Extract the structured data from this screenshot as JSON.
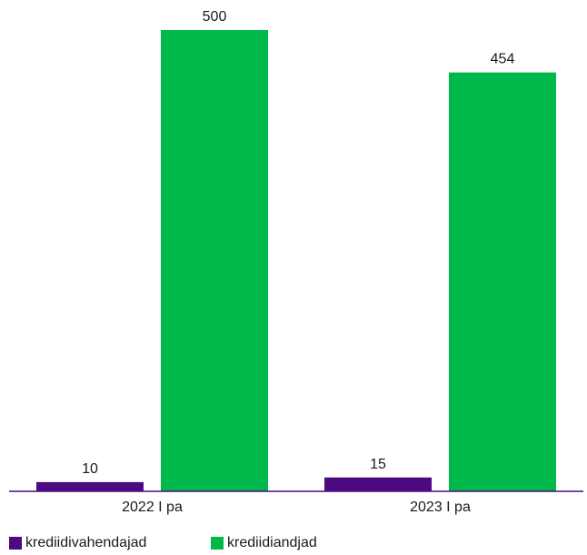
{
  "chart_data": {
    "type": "bar",
    "categories": [
      "2022 I pa",
      "2023 I pa"
    ],
    "series": [
      {
        "name": "krediidivahendajad",
        "values": [
          10,
          15
        ],
        "color": "#4b0a82"
      },
      {
        "name": "krediidiandjad",
        "values": [
          500,
          454
        ],
        "color": "#00b94a"
      }
    ],
    "title": "",
    "xlabel": "",
    "ylabel": "",
    "ylim": [
      0,
      500
    ],
    "grid": false,
    "legend_position": "bottom-left",
    "axis_color": "#4b0a82"
  }
}
